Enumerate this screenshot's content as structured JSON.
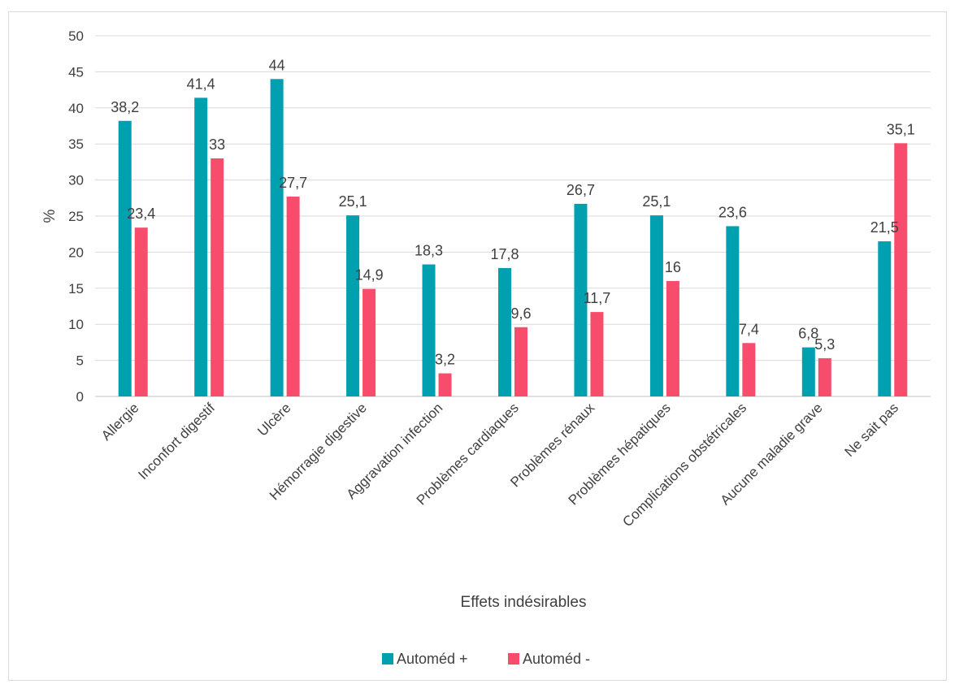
{
  "chart_data": {
    "type": "bar",
    "xlabel": "Effets indésirables",
    "ylabel": "%",
    "ylim": [
      0,
      50
    ],
    "yticks": [
      0,
      5,
      10,
      15,
      20,
      25,
      30,
      35,
      40,
      45,
      50
    ],
    "grid": true,
    "legend_position": "bottom",
    "categories": [
      "Allergie",
      "Inconfort digestif",
      "Ulcère",
      "Hémorragie digestive",
      "Aggravation infection",
      "Problèmes cardiaques",
      "Problèmes rénaux",
      "Problèmes hépatiques",
      "Complications obstétricales",
      "Aucune maladie grave",
      "Ne sait pas"
    ],
    "series": [
      {
        "name": "Automéd +",
        "color": "#00a0b0",
        "values": [
          38.2,
          41.4,
          44,
          25.1,
          18.3,
          17.8,
          26.7,
          25.1,
          23.6,
          6.8,
          21.5
        ],
        "labels": [
          "38,2",
          "41,4",
          "44",
          "25,1",
          "18,3",
          "17,8",
          "26,7",
          "25,1",
          "23,6",
          "6,8",
          "21,5"
        ]
      },
      {
        "name": "Automéd -",
        "color": "#f74c6b",
        "values": [
          23.4,
          33,
          27.7,
          14.9,
          3.2,
          9.6,
          11.7,
          16,
          7.4,
          5.3,
          35.1
        ],
        "labels": [
          "23,4",
          "33",
          "27,7",
          "14,9",
          "3,2",
          "9,6",
          "11,7",
          "16",
          "7,4",
          "5,3",
          "35,1"
        ]
      }
    ]
  }
}
